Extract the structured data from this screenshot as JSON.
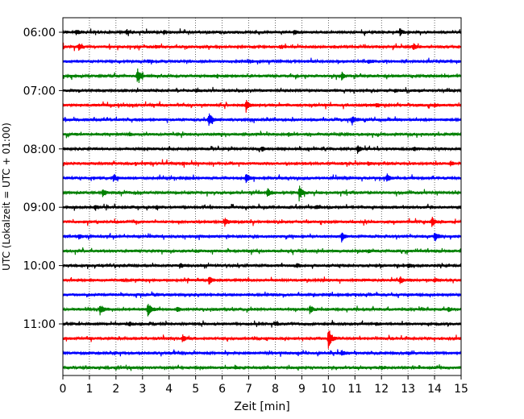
{
  "chart_data": {
    "type": "line",
    "title": "",
    "xlabel": "Zeit  [min]",
    "ylabel": "UTC (Lokalzeit = UTC + 01:00)",
    "xlim": [
      0,
      15
    ],
    "x_ticks": [
      "0",
      "1",
      "2",
      "3",
      "4",
      "5",
      "6",
      "7",
      "8",
      "9",
      "10",
      "11",
      "12",
      "13",
      "14",
      "15"
    ],
    "y_tick_labels": [
      "06:00",
      "07:00",
      "08:00",
      "09:00",
      "10:00",
      "11:00"
    ],
    "grid": "vertical dotted at each minute",
    "trace_colors": [
      "#000000",
      "#ff0000",
      "#0000ff",
      "#008000"
    ],
    "traces": [
      {
        "start": "06:00",
        "color": "#000000",
        "events": [
          [
            0.5,
            0.4
          ],
          [
            2.4,
            0.35
          ],
          [
            3.8,
            0.3
          ],
          [
            8.7,
            0.35
          ],
          [
            12.7,
            0.45
          ]
        ]
      },
      {
        "start": "06:15",
        "color": "#ff0000",
        "events": [
          [
            0.6,
            0.4
          ],
          [
            3.5,
            0.2
          ],
          [
            8.2,
            0.2
          ],
          [
            13.2,
            0.45
          ]
        ]
      },
      {
        "start": "06:30",
        "color": "#0000ff",
        "events": [
          [
            3.2,
            0.2
          ],
          [
            7.0,
            0.2
          ],
          [
            11.5,
            0.2
          ]
        ]
      },
      {
        "start": "06:45",
        "color": "#008000",
        "events": [
          [
            2.8,
            1.2
          ],
          [
            10.5,
            0.5
          ]
        ]
      },
      {
        "start": "07:00",
        "color": "#000000",
        "events": [
          [
            5.0,
            0.2
          ],
          [
            12.5,
            0.2
          ]
        ]
      },
      {
        "start": "07:15",
        "color": "#ff0000",
        "events": [
          [
            6.9,
            1.0
          ],
          [
            11.8,
            0.3
          ],
          [
            14.0,
            0.3
          ]
        ]
      },
      {
        "start": "07:30",
        "color": "#0000ff",
        "events": [
          [
            5.5,
            1.1
          ],
          [
            10.9,
            0.7
          ]
        ]
      },
      {
        "start": "07:45",
        "color": "#008000",
        "events": [
          [
            2.5,
            0.2
          ],
          [
            8.5,
            0.2
          ]
        ]
      },
      {
        "start": "08:00",
        "color": "#000000",
        "events": [
          [
            7.5,
            0.3
          ],
          [
            11.1,
            0.6
          ],
          [
            13.2,
            0.3
          ]
        ]
      },
      {
        "start": "08:15",
        "color": "#ff0000",
        "events": [
          [
            4.5,
            0.2
          ],
          [
            11.5,
            0.2
          ],
          [
            14.6,
            0.3
          ]
        ]
      },
      {
        "start": "08:30",
        "color": "#0000ff",
        "events": [
          [
            1.9,
            0.5
          ],
          [
            6.9,
            0.8
          ],
          [
            12.2,
            0.7
          ]
        ]
      },
      {
        "start": "08:45",
        "color": "#008000",
        "events": [
          [
            1.5,
            0.6
          ],
          [
            7.7,
            0.7
          ],
          [
            8.9,
            1.2
          ]
        ]
      },
      {
        "start": "09:00",
        "color": "#000000",
        "events": [
          [
            1.2,
            0.4
          ],
          [
            3.5,
            0.2
          ],
          [
            9.5,
            0.2
          ]
        ]
      },
      {
        "start": "09:15",
        "color": "#ff0000",
        "events": [
          [
            6.1,
            0.6
          ],
          [
            13.9,
            0.8
          ]
        ]
      },
      {
        "start": "09:30",
        "color": "#0000ff",
        "events": [
          [
            0.6,
            0.3
          ],
          [
            10.5,
            0.7
          ],
          [
            14.0,
            0.8
          ]
        ]
      },
      {
        "start": "09:45",
        "color": "#008000",
        "events": [
          [
            5.0,
            0.2
          ],
          [
            11.5,
            0.2
          ]
        ]
      },
      {
        "start": "10:00",
        "color": "#000000",
        "events": [
          [
            4.4,
            0.3
          ],
          [
            8.8,
            0.3
          ],
          [
            13.0,
            0.3
          ]
        ]
      },
      {
        "start": "10:15",
        "color": "#ff0000",
        "events": [
          [
            5.5,
            0.6
          ],
          [
            12.7,
            0.5
          ],
          [
            14.0,
            0.3
          ]
        ]
      },
      {
        "start": "10:30",
        "color": "#0000ff",
        "events": [
          [
            3.5,
            0.2
          ],
          [
            10.0,
            0.2
          ]
        ]
      },
      {
        "start": "10:45",
        "color": "#008000",
        "events": [
          [
            1.4,
            0.8
          ],
          [
            3.2,
            1.1
          ],
          [
            4.3,
            0.4
          ],
          [
            9.3,
            0.6
          ],
          [
            14.5,
            0.3
          ]
        ]
      },
      {
        "start": "11:00",
        "color": "#000000",
        "events": [
          [
            2.5,
            0.3
          ],
          [
            8.0,
            0.2
          ],
          [
            11.8,
            0.2
          ]
        ]
      },
      {
        "start": "11:15",
        "color": "#ff0000",
        "events": [
          [
            4.5,
            0.6
          ],
          [
            10.0,
            1.8
          ]
        ]
      },
      {
        "start": "11:30",
        "color": "#0000ff",
        "events": [
          [
            10.5,
            0.4
          ],
          [
            13.0,
            0.2
          ]
        ]
      },
      {
        "start": "11:45",
        "color": "#008000",
        "events": [
          [
            6.5,
            0.2
          ],
          [
            12.0,
            0.2
          ]
        ]
      }
    ]
  }
}
